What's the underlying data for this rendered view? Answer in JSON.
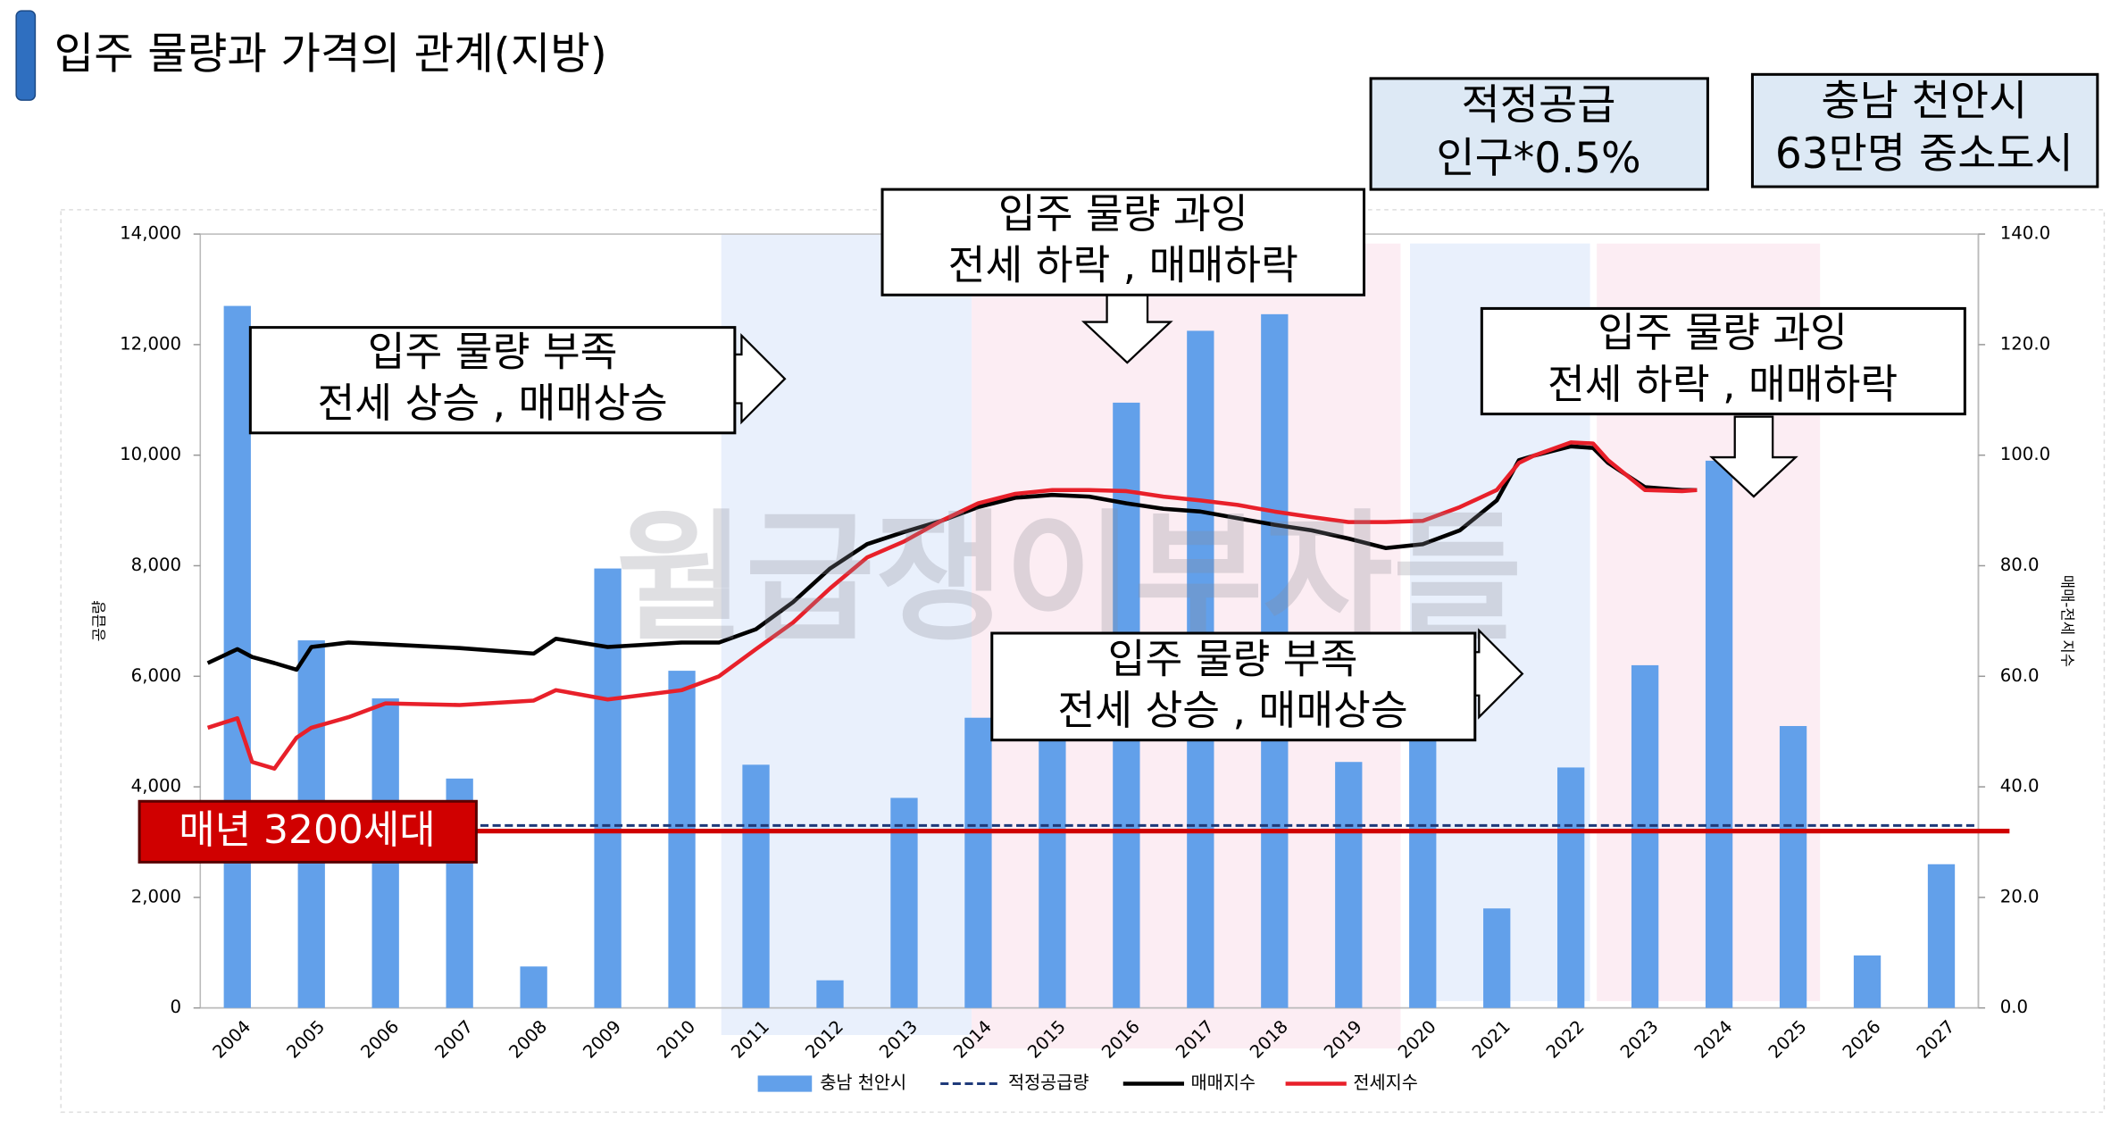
{
  "title": "입주 물량과  가격의 관계(지방)",
  "info_boxes": [
    [
      "적정공급",
      "인구*0.5%"
    ],
    [
      "충남 천안시",
      "63만명 중소도시"
    ]
  ],
  "watermark": "월급쟁이부자들",
  "chart_data": {
    "type": "combo",
    "categories": [
      "2004",
      "2005",
      "2006",
      "2007",
      "2008",
      "2009",
      "2010",
      "2011",
      "2012",
      "2013",
      "2014",
      "2015",
      "2016",
      "2017",
      "2018",
      "2019",
      "2020",
      "2021",
      "2022",
      "2023",
      "2024",
      "2025",
      "2026",
      "2027"
    ],
    "y_label": "공급량",
    "y2_label": "매매-전세 지수",
    "ylim": [
      0,
      14000
    ],
    "yticks": [
      0,
      {
        "value": 2000,
        "label": "2,000"
      },
      {
        "value": 4000,
        "label": "4,000"
      },
      {
        "value": 6000,
        "label": "6,000"
      },
      {
        "value": 8000,
        "label": "8,000"
      },
      {
        "value": 10000,
        "label": "10,000"
      },
      {
        "value": 12000,
        "label": "12,000"
      },
      {
        "value": 14000,
        "label": "14,000"
      }
    ],
    "y2lim": [
      0,
      140
    ],
    "y2ticks": [
      {
        "value": 0,
        "label": "0.0"
      },
      {
        "value": 20,
        "label": "20.0"
      },
      {
        "value": 40,
        "label": "40.0"
      },
      {
        "value": 60,
        "label": "60.0"
      },
      {
        "value": 80,
        "label": "80.0"
      },
      {
        "value": 100,
        "label": "100.0"
      },
      {
        "value": 120,
        "label": "120.0"
      },
      {
        "value": 140,
        "label": "140.0"
      }
    ],
    "xlim": [
      2003.5,
      2027.5
    ],
    "grid": false,
    "bar_series": {
      "name": "충남 천안시",
      "color": "#62a0ea",
      "values": [
        12700,
        6650,
        5600,
        4150,
        750,
        7950,
        6100,
        4400,
        500,
        3800,
        5250,
        5300,
        10950,
        12250,
        12550,
        4450,
        5300,
        1800,
        4350,
        6200,
        9900,
        5100,
        950,
        2600
      ]
    },
    "reference_line": {
      "name": "적정공급량",
      "color": "#1f3a7a",
      "style": "dashed",
      "value": 3300
    },
    "x": [
      2003.6,
      2004,
      2004.2,
      2004.5,
      2004.8,
      2005,
      2005.5,
      2006,
      2007,
      2008,
      2008.3,
      2009,
      2010,
      2010.5,
      2011,
      2011.5,
      2012,
      2012.5,
      2013,
      2013.5,
      2014,
      2014.5,
      2015,
      2015.5,
      2016,
      2016.5,
      2017,
      2017.5,
      2018,
      2018.5,
      2019,
      2019.5,
      2020,
      2020.5,
      2021,
      2021.3,
      2021.5,
      2022,
      2022.3,
      2022.5,
      2023,
      2023.5,
      2023.7
    ],
    "series": [
      {
        "name": "매매지수",
        "color": "#000000",
        "axis": "y2",
        "values": [
          62.4,
          64.9,
          63.5,
          62.4,
          61.2,
          65.3,
          66.1,
          65.8,
          65.1,
          64.1,
          66.8,
          65.3,
          66.1,
          66.1,
          68.5,
          73.4,
          79.5,
          83.9,
          86.1,
          88.1,
          90.6,
          92.3,
          92.8,
          92.5,
          91.3,
          90.3,
          89.8,
          88.6,
          87.4,
          86.4,
          84.9,
          83.2,
          83.9,
          86.4,
          91.8,
          99.1,
          99.9,
          101.6,
          101.3,
          98.6,
          94.2,
          93.7,
          93.7
        ]
      },
      {
        "name": "전세지수",
        "color": "#e8202a",
        "axis": "y2",
        "values": [
          50.7,
          52.4,
          44.5,
          43.3,
          48.9,
          50.7,
          52.6,
          55.1,
          54.8,
          55.6,
          57.5,
          55.8,
          57.5,
          60.0,
          64.9,
          69.7,
          75.9,
          81.5,
          84.4,
          88.1,
          91.3,
          93.0,
          93.7,
          93.7,
          93.5,
          92.5,
          91.8,
          91.0,
          89.8,
          88.8,
          87.9,
          87.9,
          88.1,
          90.6,
          93.7,
          98.6,
          99.9,
          102.3,
          102.1,
          99.1,
          93.7,
          93.5,
          93.7
        ]
      }
    ],
    "threshold": {
      "label": "매년 3200세대",
      "value": 3200,
      "color": "#d00000"
    },
    "annotations": [
      [
        "입주 물량 부족",
        "전세 상승 , 매매상승"
      ],
      [
        "입주 물량 과잉",
        "전세 하락 , 매매하락"
      ],
      [
        "입주 물량 과잉",
        "전세 하락 , 매매하락"
      ],
      [
        "입주 물량 부족",
        "전세 상승 , 매매상승"
      ]
    ]
  }
}
